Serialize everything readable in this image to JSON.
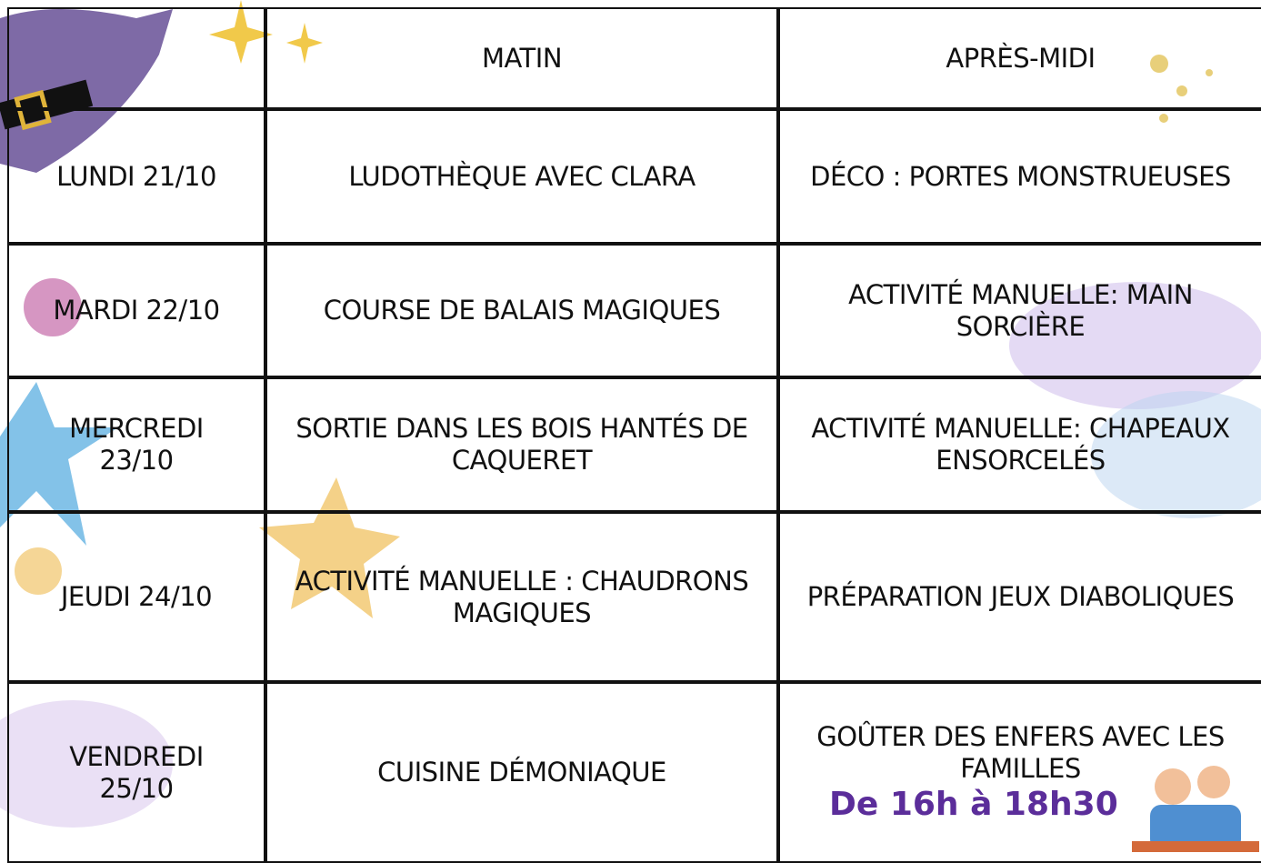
{
  "table": {
    "header": [
      "MATIN",
      "APRÈS-MIDI"
    ],
    "rows": [
      {
        "day": "LUNDI 21/10",
        "morning": "LUDOTHÈQUE AVEC CLARA",
        "afternoon": "DÉCO : PORTES MONSTRUEUSES"
      },
      {
        "day": "MARDI 22/10",
        "morning": "COURSE DE BALAIS MAGIQUES",
        "afternoon": "ACTIVITÉ MANUELLE: MAIN SORCIÈRE"
      },
      {
        "day": "MERCREDI 23/10",
        "morning": "SORTIE DANS LES BOIS HANTÉS DE CAQUERET",
        "afternoon": "ACTIVITÉ MANUELLE: CHAPEAUX ENSORCELÉS"
      },
      {
        "day": "JEUDI 24/10",
        "morning": "ACTIVITÉ MANUELLE : CHAUDRONS MAGIQUES",
        "afternoon": "PRÉPARATION JEUX DIABOLIQUES"
      },
      {
        "day": "VENDREDI 25/10",
        "morning": "CUISINE DÉMONIAQUE",
        "afternoon": "GOÛTER DES ENFERS AVEC LES FAMILLES",
        "note": "De 16h à 18h30"
      }
    ]
  }
}
